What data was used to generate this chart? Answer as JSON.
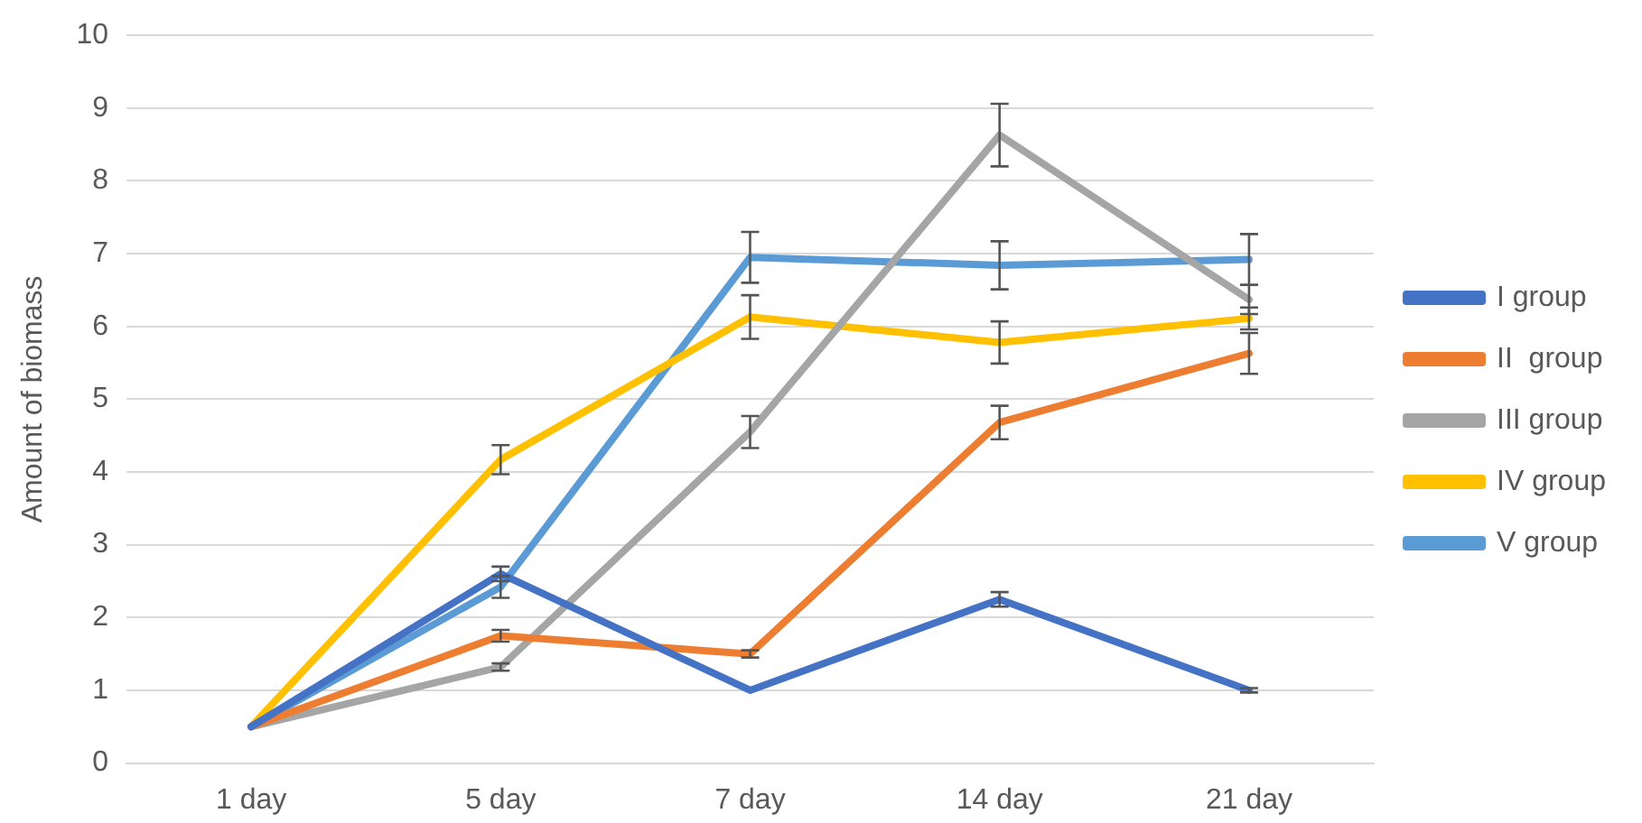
{
  "chart_data": {
    "type": "line",
    "ylabel": "Amount of biomass",
    "categories": [
      "1 day",
      "5 day",
      "7 day",
      "14 day",
      "21 day"
    ],
    "series": [
      {
        "name": "I group",
        "color": "#4472c4",
        "values": [
          0.5,
          2.6,
          1.0,
          2.25,
          1.0
        ],
        "errors": [
          null,
          0.1,
          null,
          0.1,
          0.03
        ]
      },
      {
        "name": "II  group",
        "color": "#ed7d31",
        "values": [
          0.5,
          1.75,
          1.5,
          4.68,
          5.63
        ],
        "errors": [
          null,
          0.08,
          0.05,
          0.23,
          0.28
        ]
      },
      {
        "name": "III group",
        "color": "#a5a5a5",
        "values": [
          0.5,
          1.32,
          4.55,
          8.63,
          6.37
        ],
        "errors": [
          null,
          0.05,
          0.22,
          0.43,
          0.2
        ]
      },
      {
        "name": "IV group",
        "color": "#ffc000",
        "values": [
          0.5,
          4.17,
          6.13,
          5.78,
          6.11
        ],
        "errors": [
          null,
          0.2,
          0.3,
          0.29,
          0.15
        ]
      },
      {
        "name": "V group",
        "color": "#5b9bd5",
        "values": [
          0.5,
          2.42,
          6.95,
          6.84,
          6.92
        ],
        "errors": [
          null,
          0.15,
          0.35,
          0.33,
          0.35
        ]
      }
    ],
    "ylim": [
      0,
      10
    ],
    "yticks": [
      0,
      1,
      2,
      3,
      4,
      5,
      6,
      7,
      8,
      9,
      10
    ],
    "grid": "y",
    "legend": "right",
    "marker": "none",
    "line_style": "solid"
  }
}
